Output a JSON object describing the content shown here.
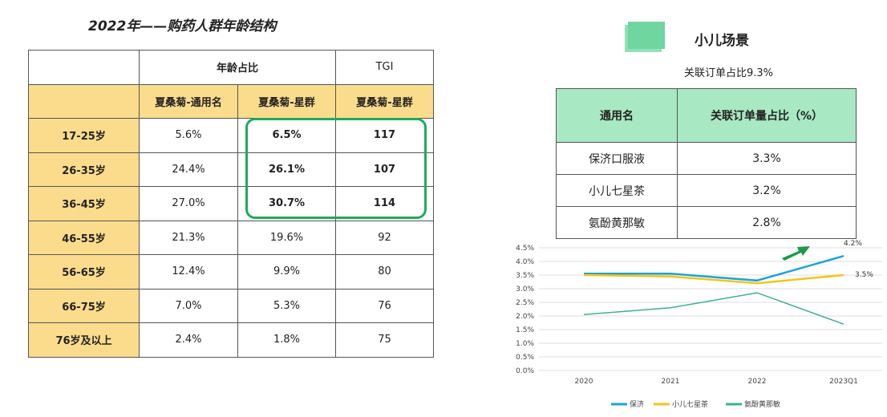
{
  "left": {
    "title": "2022年——购药人群年龄结构",
    "header1": [
      "年龄占比",
      "TGI"
    ],
    "header2": [
      "夏桑菊-通用名",
      "夏桑菊-星群",
      "夏桑菊-星群"
    ],
    "rows": [
      [
        "17-25岁",
        "5.6%",
        "6.5%",
        "117"
      ],
      [
        "26-35岁",
        "24.4%",
        "26.1%",
        "107"
      ],
      [
        "36-45岁",
        "27.0%",
        "30.7%",
        "114"
      ],
      [
        "46-55岁",
        "21.3%",
        "19.6%",
        "92"
      ],
      [
        "56-65岁",
        "12.4%",
        "9.9%",
        "80"
      ],
      [
        "66-75岁",
        "7.0%",
        "5.3%",
        "76"
      ],
      [
        "76岁及以上",
        "2.4%",
        "1.8%",
        "75"
      ]
    ],
    "highlight_color": "#1faa5c"
  },
  "right": {
    "title": "小儿场景",
    "subtitle": "关联订单占比9.3%",
    "headers": [
      "通用名",
      "关联订单量占比（%）"
    ],
    "rows": [
      [
        "保济口服液",
        "3.3%"
      ],
      [
        "小儿七星茶",
        "3.2%"
      ],
      [
        "氨酚黄那敏",
        "2.8%"
      ]
    ]
  },
  "chart_data": {
    "type": "line",
    "categories": [
      "2020",
      "2021",
      "2022",
      "2023Q1"
    ],
    "ylim": [
      0,
      4.5
    ],
    "yticks": [
      "0.0%",
      "0.5%",
      "1.0%",
      "1.5%",
      "2.0%",
      "2.5%",
      "3.0%",
      "3.5%",
      "4.0%",
      "4.5%"
    ],
    "grid": true,
    "legend": "bottom",
    "series": [
      {
        "name": "保济",
        "values": [
          3.55,
          3.55,
          3.3,
          4.2
        ],
        "color": "#1aa3dc"
      },
      {
        "name": "小儿七星茶",
        "values": [
          3.5,
          3.45,
          3.2,
          3.5
        ],
        "color": "#f5c518"
      },
      {
        "name": "氨酚黄那敏",
        "values": [
          2.05,
          2.3,
          2.85,
          1.7
        ],
        "color": "#3cb384"
      }
    ],
    "annotations": [
      "4.2%",
      "3.5%"
    ]
  }
}
